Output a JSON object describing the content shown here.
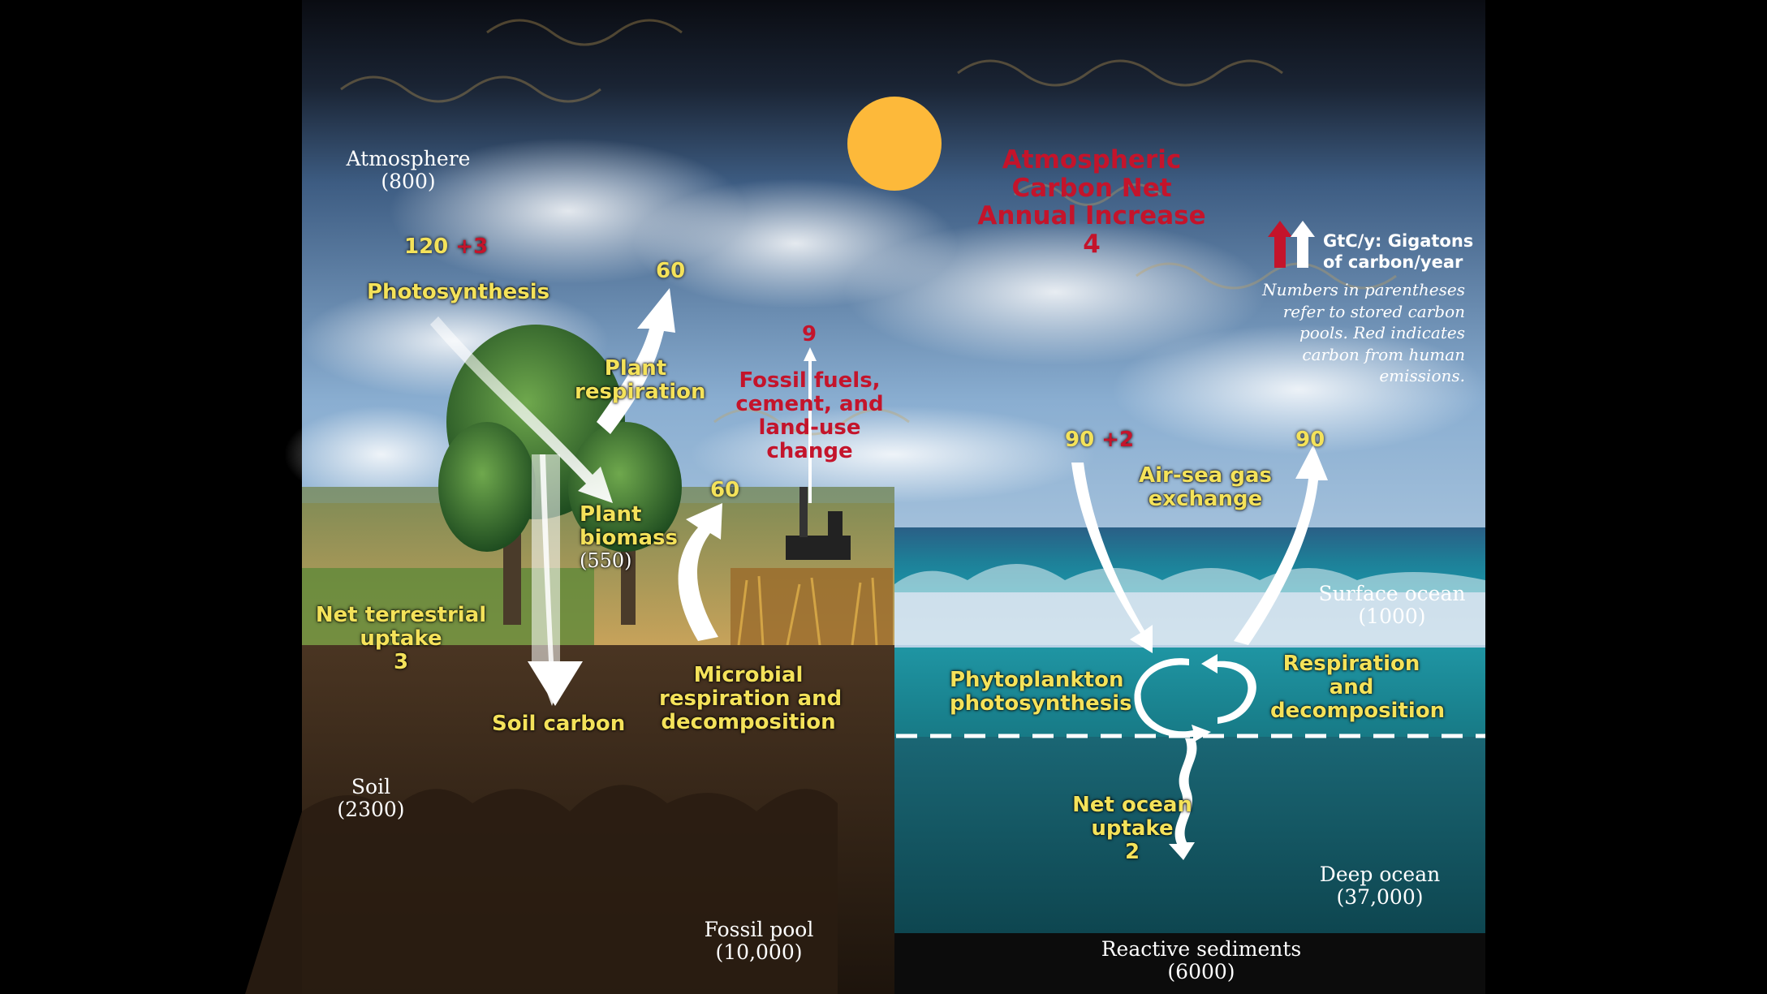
{
  "labels": {
    "atmosphere": "Atmosphere",
    "atmosphere_pool": "(800)",
    "net_increase_title": "Atmospheric Carbon Net Annual Increase",
    "net_increase_value": "4",
    "legend_title_1": "GtC/y: Gigatons",
    "legend_title_2": "of carbon/year",
    "legend_note": [
      "Numbers in parentheses",
      "refer to stored carbon",
      "pools. Red indicates",
      "carbon from human",
      "emissions."
    ],
    "photosynthesis_value": "120",
    "photosynthesis_human": "+3",
    "photosynthesis": "Photosynthesis",
    "plant_respiration_value": "60",
    "plant_respiration": "Plant respiration",
    "fossil_value": "9",
    "fossil": [
      "Fossil fuels,",
      "cement, and",
      "land-use",
      "change"
    ],
    "plant_biomass": [
      "Plant",
      "biomass"
    ],
    "plant_biomass_pool": "(550)",
    "microbial_value": "60",
    "microbial": [
      "Microbial",
      "respiration and",
      "decomposition"
    ],
    "net_terrestrial": [
      "Net terrestrial",
      "uptake",
      "3"
    ],
    "soil_carbon": "Soil carbon",
    "soil": "Soil",
    "soil_pool": "(2300)",
    "fossil_pool": "Fossil pool",
    "fossil_pool_value": "(10,000)",
    "ocean_in_value": "90",
    "ocean_in_human": "+2",
    "ocean_out_value": "90",
    "air_sea": [
      "Air-sea gas",
      "exchange"
    ],
    "surface_ocean": "Surface ocean",
    "surface_ocean_pool": "(1000)",
    "phytoplankton": [
      "Phytoplankton",
      "photosynthesis"
    ],
    "respiration_ocean": [
      "Respiration",
      "and",
      "decomposition"
    ],
    "net_ocean": [
      "Net ocean",
      "uptake",
      "2"
    ],
    "deep_ocean": "Deep ocean",
    "deep_ocean_pool": "(37,000)",
    "sediments": "Reactive sediments",
    "sediments_pool": "(6000)"
  },
  "colors": {
    "label_yellow": "#f4e25a",
    "human_red": "#c4142b",
    "sun": "#fdb93a",
    "ocean": "#1d6c80",
    "soil": "#3b2a1c"
  }
}
